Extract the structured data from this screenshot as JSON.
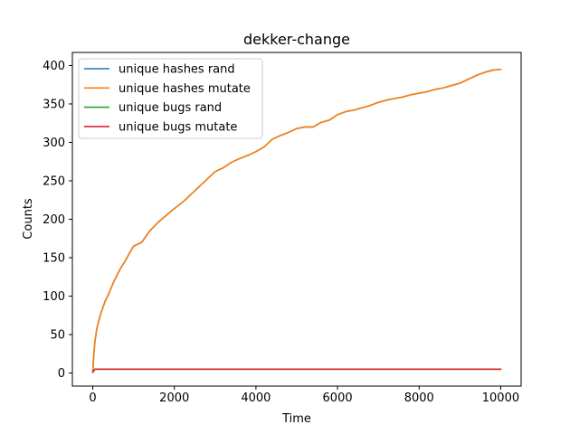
{
  "chart_data": {
    "type": "line",
    "title": "dekker-change",
    "xlabel": "Time",
    "ylabel": "Counts",
    "xlim": [
      -500,
      10500
    ],
    "ylim": [
      -17,
      417
    ],
    "xticks": [
      0,
      2000,
      4000,
      6000,
      8000,
      10000
    ],
    "yticks": [
      0,
      50,
      100,
      150,
      200,
      250,
      300,
      350,
      400
    ],
    "grid": false,
    "legend": "top-left",
    "series": [
      {
        "name": "unique hashes rand",
        "color": "#1f77b4",
        "x": [
          0,
          20,
          50,
          100,
          200,
          300,
          400,
          500,
          600,
          700,
          800,
          900,
          1000,
          1200,
          1400,
          1600,
          1800,
          2000,
          2200,
          2400,
          2600,
          2800,
          3000,
          3200,
          3400,
          3600,
          3800,
          4000,
          4200,
          4400,
          4600,
          4800,
          5000,
          5200,
          5400,
          5600,
          5800,
          6000,
          6200,
          6400,
          6600,
          6800,
          7000,
          7200,
          7400,
          7600,
          7800,
          8000,
          8200,
          8400,
          8600,
          8800,
          9000,
          9200,
          9400,
          9600,
          9800,
          10000
        ],
        "y": [
          1,
          20,
          40,
          58,
          78,
          93,
          104,
          117,
          128,
          138,
          146,
          156,
          165,
          170,
          185,
          196,
          205,
          214,
          222,
          232,
          242,
          252,
          262,
          267,
          274,
          279,
          283,
          288,
          294,
          304,
          309,
          313,
          318,
          320,
          320,
          326,
          329,
          336,
          340,
          342,
          345,
          348,
          352,
          355,
          357,
          359,
          362,
          364,
          366,
          369,
          371,
          374,
          377,
          382,
          387,
          391,
          394,
          395
        ]
      },
      {
        "name": "unique hashes mutate",
        "color": "#ff7f0e",
        "x": [
          0,
          20,
          50,
          100,
          200,
          300,
          400,
          500,
          600,
          700,
          800,
          900,
          1000,
          1200,
          1400,
          1600,
          1800,
          2000,
          2200,
          2400,
          2600,
          2800,
          3000,
          3200,
          3400,
          3600,
          3800,
          4000,
          4200,
          4400,
          4600,
          4800,
          5000,
          5200,
          5400,
          5600,
          5800,
          6000,
          6200,
          6400,
          6600,
          6800,
          7000,
          7200,
          7400,
          7600,
          7800,
          8000,
          8200,
          8400,
          8600,
          8800,
          9000,
          9200,
          9400,
          9600,
          9800,
          10000
        ],
        "y": [
          1,
          20,
          40,
          58,
          78,
          93,
          104,
          117,
          128,
          138,
          146,
          156,
          165,
          170,
          185,
          196,
          205,
          214,
          222,
          232,
          242,
          252,
          262,
          267,
          274,
          279,
          283,
          288,
          294,
          304,
          309,
          313,
          318,
          320,
          320,
          326,
          329,
          336,
          340,
          342,
          345,
          348,
          352,
          355,
          357,
          359,
          362,
          364,
          366,
          369,
          371,
          374,
          377,
          382,
          387,
          391,
          394,
          395
        ]
      },
      {
        "name": "unique bugs rand",
        "color": "#2ca02c",
        "x": [
          0,
          50,
          100,
          10000
        ],
        "y": [
          1,
          5,
          5,
          5
        ]
      },
      {
        "name": "unique bugs mutate",
        "color": "#d62728",
        "x": [
          0,
          50,
          100,
          10000
        ],
        "y": [
          1,
          5,
          5,
          5
        ]
      }
    ]
  }
}
